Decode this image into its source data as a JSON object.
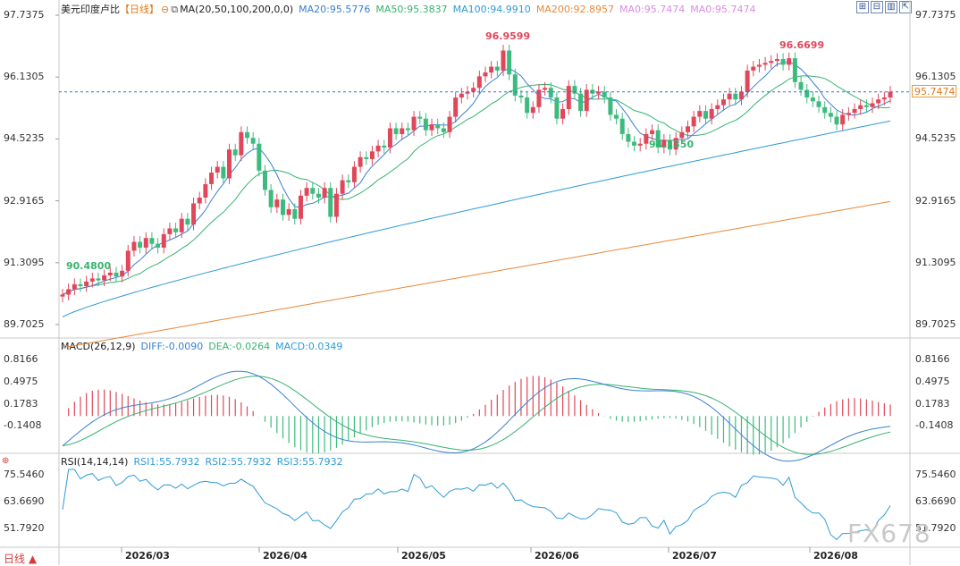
{
  "header": {
    "pair": "美元印度卢比",
    "period_tag": "【日线】",
    "ma_label": "MA(20,50,100,200,0,0)",
    "ma20": "MA20:95.5776",
    "ma50": "MA50:95.3837",
    "ma100": "MA100:94.9910",
    "ma200": "MA200:92.8957",
    "ma0a": "MA0:95.7474",
    "ma0b": "MA0:95.7474"
  },
  "macd_header": {
    "label": "MACD(26,12,9)",
    "diff": "DIFF:-0.0090",
    "dea": "DEA:-0.0264",
    "macd": "MACD:0.0349"
  },
  "rsi_header": {
    "label": "RSI(14,14,14)",
    "rsi1": "RSI1:55.7932",
    "rsi2": "RSI2:55.7932",
    "rsi3": "RSI3:55.7932"
  },
  "current_price": "95.7474",
  "period_button": "日线 ▲",
  "watermark": "FX678",
  "price_axis": [
    "97.7375",
    "96.1305",
    "94.5235",
    "92.9165",
    "91.3095",
    "89.7025"
  ],
  "macd_axis": [
    "0.8166",
    "0.4975",
    "0.1783",
    "-0.1408"
  ],
  "rsi_axis": [
    "75.5460",
    "63.6690",
    "51.7920"
  ],
  "dates": [
    "2026/03",
    "2026/04",
    "2026/05",
    "2026/06",
    "2026/07",
    "2026/08"
  ],
  "annotations": {
    "high1": "96.9599",
    "high2": "96.6699",
    "low1": "90.4800",
    "low2": "94.1350"
  },
  "colors": {
    "up": "#e0475a",
    "down": "#3dbb7e",
    "ma20": "#3a7fd0",
    "ma50": "#36b36f",
    "ma100": "#2e9bd6",
    "ma200": "#e8893a",
    "macd_diff": "#3a7fd0",
    "macd_dea": "#36b36f",
    "rsi": "#2e9bd6"
  },
  "chart_data": {
    "type": "candlestick",
    "series_close": [
      90.48,
      90.62,
      90.75,
      90.7,
      90.82,
      90.9,
      90.85,
      90.98,
      91.05,
      90.95,
      91.1,
      91.62,
      91.85,
      91.7,
      91.95,
      91.8,
      91.7,
      92.05,
      92.2,
      92.1,
      92.45,
      92.3,
      92.85,
      93.0,
      93.35,
      93.65,
      93.8,
      93.5,
      94.25,
      94.1,
      94.7,
      94.55,
      94.4,
      93.7,
      93.2,
      92.75,
      92.95,
      92.55,
      92.7,
      92.45,
      93.05,
      93.25,
      93.1,
      93.0,
      93.25,
      92.5,
      93.1,
      93.45,
      93.4,
      93.8,
      94.05,
      94.0,
      94.2,
      94.35,
      94.3,
      94.8,
      94.65,
      94.8,
      94.75,
      95.1,
      95.05,
      94.75,
      94.9,
      94.8,
      94.7,
      95.1,
      95.6,
      95.7,
      95.75,
      95.85,
      96.15,
      96.25,
      96.4,
      96.3,
      96.82,
      96.2,
      95.65,
      95.6,
      95.2,
      95.35,
      95.8,
      95.85,
      95.6,
      95.05,
      95.3,
      95.9,
      95.7,
      95.25,
      95.8,
      95.7,
      95.75,
      95.6,
      95.15,
      95.05,
      94.65,
      94.45,
      94.35,
      94.4,
      94.65,
      94.75,
      94.3,
      94.5,
      94.25,
      94.55,
      94.7,
      94.85,
      95.1,
      95.25,
      95.05,
      95.3,
      95.4,
      95.55,
      95.7,
      95.55,
      95.75,
      96.3,
      96.4,
      96.45,
      96.5,
      96.55,
      96.6,
      96.45,
      96.62,
      96.0,
      95.8,
      95.6,
      95.5,
      95.35,
      95.2,
      95.1,
      94.9,
      95.15,
      95.2,
      95.3,
      95.4,
      95.35,
      95.45,
      95.55,
      95.6,
      95.75
    ],
    "high": "96.9599",
    "low": "90.4800",
    "ylim": [
      89.4,
      97.9
    ],
    "x_months": [
      "2026/03",
      "2026/04",
      "2026/05",
      "2026/06",
      "2026/07",
      "2026/08"
    ]
  }
}
